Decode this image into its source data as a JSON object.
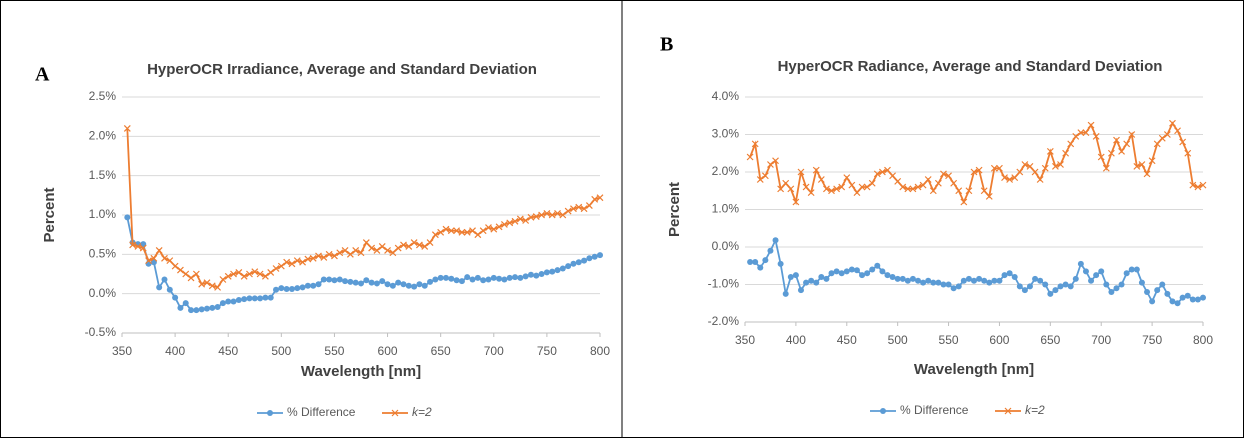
{
  "chart_data": [
    {
      "type": "line",
      "panel_label": "A",
      "title": "HyperOCR Irradiance, Average and Standard Deviation",
      "x_label": "Wavelength [nm]",
      "y_label": "Percent",
      "x": [
        355,
        360,
        365,
        370,
        375,
        380,
        385,
        390,
        395,
        400,
        405,
        410,
        415,
        420,
        425,
        430,
        435,
        440,
        445,
        450,
        455,
        460,
        465,
        470,
        475,
        480,
        485,
        490,
        495,
        500,
        505,
        510,
        515,
        520,
        525,
        530,
        535,
        540,
        545,
        550,
        555,
        560,
        565,
        570,
        575,
        580,
        585,
        590,
        595,
        600,
        605,
        610,
        615,
        620,
        625,
        630,
        635,
        640,
        645,
        650,
        655,
        660,
        665,
        670,
        675,
        680,
        685,
        690,
        695,
        700,
        705,
        710,
        715,
        720,
        725,
        730,
        735,
        740,
        745,
        750,
        755,
        760,
        765,
        770,
        775,
        780,
        785,
        790,
        795,
        800
      ],
      "series": [
        {
          "name": "% Difference",
          "color": "#5b9bd5",
          "marker": "circle",
          "values": [
            0.97,
            0.65,
            0.63,
            0.63,
            0.38,
            0.4,
            0.08,
            0.18,
            0.05,
            -0.05,
            -0.18,
            -0.12,
            -0.21,
            -0.21,
            -0.2,
            -0.19,
            -0.18,
            -0.17,
            -0.12,
            -0.1,
            -0.1,
            -0.08,
            -0.07,
            -0.06,
            -0.06,
            -0.06,
            -0.05,
            -0.05,
            0.05,
            0.07,
            0.06,
            0.06,
            0.07,
            0.08,
            0.1,
            0.1,
            0.12,
            0.18,
            0.18,
            0.17,
            0.18,
            0.16,
            0.15,
            0.14,
            0.13,
            0.17,
            0.14,
            0.13,
            0.16,
            0.12,
            0.1,
            0.14,
            0.12,
            0.1,
            0.09,
            0.12,
            0.1,
            0.15,
            0.18,
            0.2,
            0.2,
            0.19,
            0.17,
            0.16,
            0.21,
            0.18,
            0.2,
            0.17,
            0.18,
            0.2,
            0.19,
            0.18,
            0.2,
            0.21,
            0.2,
            0.22,
            0.24,
            0.23,
            0.25,
            0.27,
            0.28,
            0.3,
            0.32,
            0.35,
            0.38,
            0.4,
            0.42,
            0.45,
            0.47,
            0.49
          ]
        },
        {
          "name": "k=2",
          "color": "#ed7d31",
          "marker": "x",
          "values": [
            2.1,
            0.62,
            0.6,
            0.58,
            0.42,
            0.45,
            0.55,
            0.45,
            0.42,
            0.35,
            0.3,
            0.25,
            0.2,
            0.25,
            0.12,
            0.14,
            0.1,
            0.08,
            0.18,
            0.22,
            0.25,
            0.27,
            0.22,
            0.25,
            0.28,
            0.25,
            0.22,
            0.27,
            0.32,
            0.35,
            0.4,
            0.38,
            0.42,
            0.4,
            0.44,
            0.45,
            0.48,
            0.46,
            0.5,
            0.48,
            0.52,
            0.55,
            0.5,
            0.55,
            0.52,
            0.65,
            0.58,
            0.55,
            0.6,
            0.55,
            0.52,
            0.58,
            0.62,
            0.6,
            0.65,
            0.62,
            0.6,
            0.65,
            0.75,
            0.78,
            0.82,
            0.8,
            0.8,
            0.78,
            0.78,
            0.8,
            0.75,
            0.8,
            0.84,
            0.82,
            0.85,
            0.88,
            0.9,
            0.92,
            0.95,
            0.93,
            0.97,
            0.98,
            1.0,
            1.02,
            1.0,
            1.02,
            1.0,
            1.05,
            1.08,
            1.1,
            1.08,
            1.12,
            1.2,
            1.22
          ]
        }
      ],
      "xlim": [
        350,
        800
      ],
      "xticks": [
        350,
        400,
        450,
        500,
        550,
        600,
        650,
        700,
        750,
        800
      ],
      "ylim": [
        -0.5,
        2.5
      ],
      "yticks": [
        {
          "value": -0.5,
          "label": "-0.5%"
        },
        {
          "value": 0,
          "label": "0.0%"
        },
        {
          "value": 0.5,
          "label": "0.5%"
        },
        {
          "value": 1,
          "label": "1.0%"
        },
        {
          "value": 1.5,
          "label": "1.5%"
        },
        {
          "value": 2,
          "label": "2.0%"
        },
        {
          "value": 2.5,
          "label": "2.5%"
        }
      ],
      "grid": true
    },
    {
      "type": "line",
      "panel_label": "B",
      "title": "HyperOCR Radiance, Average and Standard Deviation",
      "x_label": "Wavelength [nm]",
      "y_label": "Percent",
      "x": [
        355,
        360,
        365,
        370,
        375,
        380,
        385,
        390,
        395,
        400,
        405,
        410,
        415,
        420,
        425,
        430,
        435,
        440,
        445,
        450,
        455,
        460,
        465,
        470,
        475,
        480,
        485,
        490,
        495,
        500,
        505,
        510,
        515,
        520,
        525,
        530,
        535,
        540,
        545,
        550,
        555,
        560,
        565,
        570,
        575,
        580,
        585,
        590,
        595,
        600,
        605,
        610,
        615,
        620,
        625,
        630,
        635,
        640,
        645,
        650,
        655,
        660,
        665,
        670,
        675,
        680,
        685,
        690,
        695,
        700,
        705,
        710,
        715,
        720,
        725,
        730,
        735,
        740,
        745,
        750,
        755,
        760,
        765,
        770,
        775,
        780,
        785,
        790,
        795,
        800
      ],
      "series": [
        {
          "name": "% Difference",
          "color": "#5b9bd5",
          "marker": "circle",
          "values": [
            -0.4,
            -0.4,
            -0.55,
            -0.35,
            -0.1,
            0.18,
            -0.45,
            -1.25,
            -0.8,
            -0.75,
            -1.15,
            -0.95,
            -0.9,
            -0.95,
            -0.8,
            -0.85,
            -0.7,
            -0.65,
            -0.7,
            -0.65,
            -0.6,
            -0.62,
            -0.75,
            -0.7,
            -0.6,
            -0.5,
            -0.65,
            -0.75,
            -0.8,
            -0.85,
            -0.85,
            -0.9,
            -0.85,
            -0.9,
            -0.95,
            -0.9,
            -0.95,
            -0.95,
            -1.0,
            -1.0,
            -1.1,
            -1.05,
            -0.9,
            -0.85,
            -0.9,
            -0.85,
            -0.9,
            -0.95,
            -0.9,
            -0.9,
            -0.75,
            -0.7,
            -0.8,
            -1.05,
            -1.15,
            -1.05,
            -0.85,
            -0.9,
            -1.0,
            -1.25,
            -1.15,
            -1.05,
            -1.0,
            -1.05,
            -0.85,
            -0.45,
            -0.65,
            -0.9,
            -0.75,
            -0.65,
            -1.0,
            -1.2,
            -1.1,
            -1.0,
            -0.7,
            -0.6,
            -0.6,
            -0.95,
            -1.2,
            -1.45,
            -1.15,
            -1.0,
            -1.25,
            -1.45,
            -1.5,
            -1.35,
            -1.3,
            -1.4,
            -1.4,
            -1.35
          ]
        },
        {
          "name": "k=2",
          "color": "#ed7d31",
          "marker": "x",
          "values": [
            2.4,
            2.75,
            1.8,
            1.9,
            2.2,
            2.3,
            1.55,
            1.7,
            1.55,
            1.2,
            2.0,
            1.6,
            1.45,
            2.05,
            1.8,
            1.55,
            1.5,
            1.55,
            1.6,
            1.85,
            1.65,
            1.45,
            1.6,
            1.6,
            1.7,
            1.95,
            2.0,
            2.05,
            1.9,
            1.75,
            1.6,
            1.55,
            1.55,
            1.6,
            1.65,
            1.8,
            1.5,
            1.7,
            1.95,
            1.9,
            1.7,
            1.5,
            1.2,
            1.5,
            2.0,
            2.05,
            1.5,
            1.35,
            2.1,
            2.1,
            1.85,
            1.8,
            1.85,
            2.0,
            2.2,
            2.15,
            2.0,
            1.8,
            2.1,
            2.55,
            2.15,
            2.2,
            2.5,
            2.75,
            2.95,
            3.05,
            3.05,
            3.25,
            2.95,
            2.4,
            2.1,
            2.5,
            2.85,
            2.55,
            2.75,
            3.0,
            2.15,
            2.2,
            1.95,
            2.3,
            2.75,
            2.9,
            3.0,
            3.3,
            3.1,
            2.8,
            2.5,
            1.65,
            1.6,
            1.65
          ]
        }
      ],
      "xlim": [
        350,
        800
      ],
      "xticks": [
        350,
        400,
        450,
        500,
        550,
        600,
        650,
        700,
        750,
        800
      ],
      "ylim": [
        -2,
        4
      ],
      "yticks": [
        {
          "value": -2,
          "label": "-2.0%"
        },
        {
          "value": -1,
          "label": "-1.0%"
        },
        {
          "value": 0,
          "label": "0.0%"
        },
        {
          "value": 1,
          "label": "1.0%"
        },
        {
          "value": 2,
          "label": "2.0%"
        },
        {
          "value": 3,
          "label": "3.0%"
        },
        {
          "value": 4,
          "label": "4.0%"
        }
      ],
      "grid": true
    }
  ]
}
